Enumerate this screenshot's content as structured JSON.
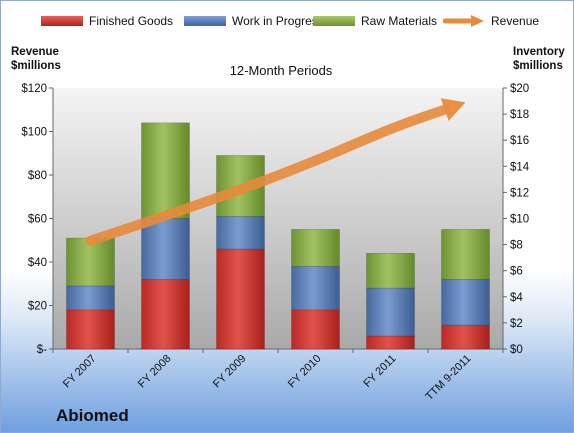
{
  "legend": {
    "finished": "Finished Goods",
    "wip": "Work in Progress",
    "raw": "Raw Materials",
    "revenue": "Revenue"
  },
  "left_axis_title": "Revenue\n$millions",
  "right_axis_title": "Inventory\n$millions",
  "company": "Abiomed",
  "colors": {
    "finished": "#c8302c",
    "wip": "#4f76b4",
    "raw": "#7fa23e",
    "revenue": "#e88a3a"
  },
  "chart_data": {
    "type": "bar",
    "title": "12-Month Periods",
    "categories": [
      "FY 2007",
      "FY 2008",
      "FY 2009",
      "FY 2010",
      "FY 2011",
      "TTM 9-2011"
    ],
    "series": [
      {
        "name": "Finished Goods",
        "values": [
          18,
          32,
          46,
          18,
          6,
          11
        ]
      },
      {
        "name": "Work in Progress",
        "values": [
          11,
          28,
          15,
          20,
          22,
          21
        ]
      },
      {
        "name": "Raw Materials",
        "values": [
          22,
          44,
          28,
          17,
          16,
          23
        ]
      }
    ],
    "line_series": {
      "name": "Revenue",
      "axis": "right",
      "values": [
        8.3,
        10.2,
        12.2,
        14.4,
        16.9,
        18.9
      ]
    },
    "ylabel": "Revenue\n$millions",
    "ylabel_right": "Inventory\n$millions",
    "ylim": [
      0,
      120
    ],
    "ylim_right": [
      0,
      20
    ],
    "yticks_left": [
      "$-",
      "$20",
      "$40",
      "$60",
      "$80",
      "$100",
      "$120"
    ],
    "yticks_right": [
      "$0",
      "$2",
      "$4",
      "$6",
      "$8",
      "$10",
      "$12",
      "$14",
      "$16",
      "$18",
      "$20"
    ],
    "stacked": true,
    "grid": false,
    "legend_position": "top"
  }
}
